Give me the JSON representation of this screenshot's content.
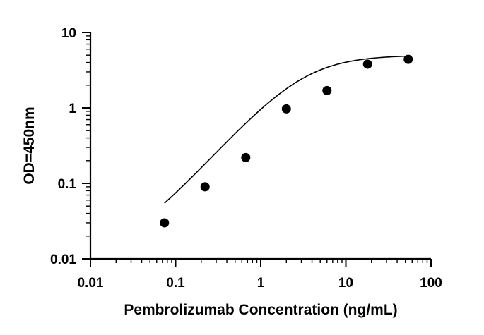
{
  "chart_data": {
    "type": "scatter",
    "xlabel": "Pembrolizumab Concentration (ng/mL)",
    "ylabel": "OD=450nm",
    "x_scale": "log",
    "y_scale": "log",
    "xlim": [
      0.01,
      100
    ],
    "ylim": [
      0.01,
      10
    ],
    "x_ticks": [
      "0.01",
      "0.1",
      "1",
      "10",
      "100"
    ],
    "y_ticks": [
      "0.01",
      "0.1",
      "1",
      "10"
    ],
    "grid": false,
    "legend": "none",
    "series": [
      {
        "x": [
          0.074,
          0.222,
          0.667,
          2.0,
          6.0,
          18.0,
          54.0
        ],
        "y": [
          0.03,
          0.09,
          0.22,
          0.97,
          1.7,
          3.8,
          4.4
        ]
      }
    ],
    "fit_curve": {
      "type": "4PL",
      "bottom": 0.01,
      "top": 5.0,
      "ec50": 3.2,
      "hill": 1.25
    }
  }
}
